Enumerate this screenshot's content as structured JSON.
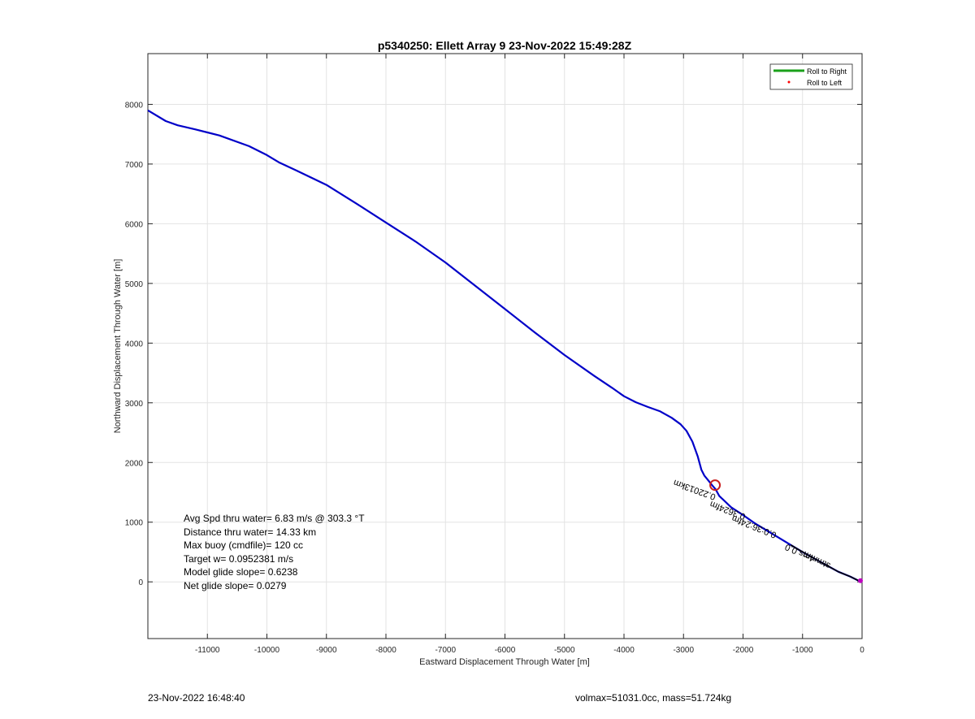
{
  "chart_data": {
    "type": "line",
    "title": "p5340250: Ellett Array 9 23-Nov-2022 15:49:28Z",
    "xlabel": "Eastward Displacement Through Water [m]",
    "ylabel": "Northward Displacement Through Water [m]",
    "xlim": [
      -12000,
      0
    ],
    "ylim": [
      -950,
      8850
    ],
    "xticks": [
      -11000,
      -10000,
      -9000,
      -8000,
      -7000,
      -6000,
      -5000,
      -4000,
      -3000,
      -2000,
      -1000,
      0
    ],
    "yticks": [
      0,
      1000,
      2000,
      3000,
      4000,
      5000,
      6000,
      7000,
      8000
    ],
    "grid": true,
    "legend_position": "top-right",
    "legend": [
      "Roll to Right",
      "Roll to Left"
    ],
    "series": [
      {
        "name": "track",
        "color": "#0000c8",
        "x": [
          -12000,
          -11700,
          -11500,
          -11200,
          -10800,
          -10300,
          -10000,
          -9800,
          -9500,
          -9000,
          -8500,
          -8000,
          -7500,
          -7000,
          -6500,
          -6000,
          -5500,
          -5000,
          -4500,
          -4200,
          -4000,
          -3800,
          -3600,
          -3400,
          -3200,
          -3050,
          -2950,
          -2850,
          -2760,
          -2700,
          -2650,
          -2600,
          -2560,
          -2520,
          -2460,
          -2400,
          -2200,
          -2000,
          -1800,
          -1600,
          -1400,
          -1200,
          -1000,
          -800,
          -600,
          -400,
          -200,
          -80,
          0
        ],
        "y": [
          7900,
          7720,
          7650,
          7580,
          7480,
          7300,
          7150,
          7030,
          6890,
          6650,
          6340,
          6020,
          5700,
          5350,
          4960,
          4570,
          4180,
          3800,
          3450,
          3250,
          3110,
          3010,
          2930,
          2860,
          2750,
          2640,
          2530,
          2350,
          2100,
          1880,
          1780,
          1720,
          1670,
          1620,
          1550,
          1440,
          1250,
          1120,
          980,
          860,
          740,
          620,
          500,
          390,
          280,
          170,
          90,
          30,
          0
        ]
      }
    ],
    "marker": {
      "x": -2470,
      "y": 1620
    },
    "endpoint": {
      "x": 0,
      "y": 20
    },
    "annotations": [
      {
        "text": "0.22013km",
        "x": -2450,
        "y": 1460,
        "rotation": 20
      },
      {
        "text": "0.3624fm",
        "x": -1950,
        "y": 1130,
        "rotation": 21
      },
      {
        "text": "0.0:36:24fm",
        "x": -1430,
        "y": 820,
        "rotation": 22
      },
      {
        "text": "4ms 0.0",
        "x": -780,
        "y": 420,
        "rotation": 24
      },
      {
        "text": "stmmm",
        "x": -520,
        "y": 300,
        "rotation": 26
      }
    ],
    "text_box": [
      "Avg Spd thru water=  6.83 m/s @ 303.3 °T",
      "Distance thru water= 14.33 km",
      "Max buoy (cmdfile)= 120 cc",
      "Target w= 0.0952381 m/s",
      "Model glide slope= 0.6238",
      "Net glide slope= 0.0279"
    ],
    "colors": {
      "roll_right": "#1aa01a",
      "roll_left": "#ff0000",
      "track": "#0000c8",
      "marker": "#c81e1e"
    }
  },
  "footer": {
    "left": "23-Nov-2022 16:48:40",
    "right": "volmax=51031.0cc, mass=51.724kg"
  }
}
